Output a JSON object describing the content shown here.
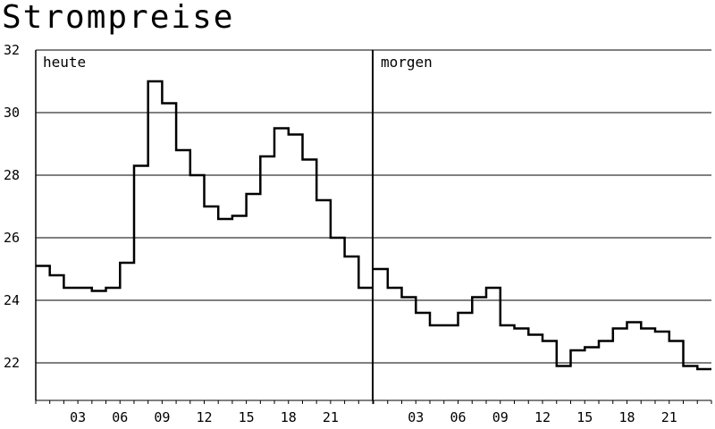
{
  "title": "Strompreise",
  "chart_data": {
    "type": "line",
    "step": true,
    "title": "Strompreise",
    "ylim": [
      20.8,
      32
    ],
    "y_ticks": [
      22,
      24,
      26,
      28,
      30,
      32
    ],
    "grid": true,
    "x_tick_labels": [
      "03",
      "06",
      "09",
      "12",
      "15",
      "18",
      "21"
    ],
    "x_tick_hours": [
      3,
      6,
      9,
      12,
      15,
      18,
      21
    ],
    "panels": [
      {
        "name": "heute",
        "values": [
          25.1,
          24.8,
          24.4,
          24.4,
          24.3,
          24.4,
          25.2,
          28.3,
          31.0,
          30.3,
          28.8,
          28.0,
          27.0,
          26.6,
          26.7,
          27.4,
          28.6,
          29.5,
          29.3,
          28.5,
          27.2,
          26.0,
          25.4,
          24.4
        ]
      },
      {
        "name": "morgen",
        "values": [
          25.0,
          24.4,
          24.1,
          23.6,
          23.2,
          23.2,
          23.6,
          24.1,
          24.4,
          23.2,
          23.1,
          22.9,
          22.7,
          21.9,
          22.4,
          22.5,
          22.7,
          23.1,
          23.3,
          23.1,
          23.0,
          22.7,
          21.9,
          21.8
        ]
      }
    ]
  }
}
